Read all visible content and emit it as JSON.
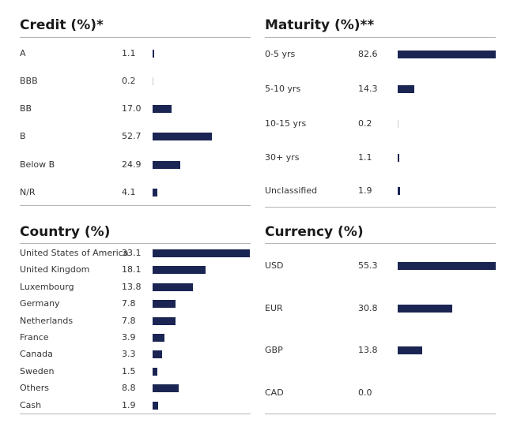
{
  "chart_data": [
    {
      "type": "bar",
      "title": "Credit (%)*",
      "categories": [
        "A",
        "BBB",
        "BB",
        "B",
        "Below B",
        "N/R"
      ],
      "values": [
        1.1,
        0.2,
        17.0,
        52.7,
        24.9,
        4.1
      ],
      "display_values": [
        "1.1",
        "0.2",
        "17.0",
        "52.7",
        "24.9",
        "4.1"
      ]
    },
    {
      "type": "bar",
      "title": "Maturity (%)**",
      "categories": [
        "0-5 yrs",
        "5-10 yrs",
        "10-15 yrs",
        "30+ yrs",
        "Unclassified"
      ],
      "values": [
        82.6,
        14.3,
        0.2,
        1.1,
        1.9
      ],
      "display_values": [
        "82.6",
        "14.3",
        "0.2",
        "1.1",
        "1.9"
      ]
    },
    {
      "type": "bar",
      "title": "Country (%)",
      "categories": [
        "United States of America",
        "United Kingdom",
        "Luxembourg",
        "Germany",
        "Netherlands",
        "France",
        "Canada",
        "Sweden",
        "Others",
        "Cash"
      ],
      "values": [
        33.1,
        18.1,
        13.8,
        7.8,
        7.8,
        3.9,
        3.3,
        1.5,
        8.8,
        1.9
      ],
      "display_values": [
        "33.1",
        "18.1",
        "13.8",
        "7.8",
        "7.8",
        "3.9",
        "3.3",
        "1.5",
        "8.8",
        "1.9"
      ]
    },
    {
      "type": "bar",
      "title": "Currency (%)",
      "categories": [
        "USD",
        "EUR",
        "GBP",
        "CAD"
      ],
      "values": [
        55.3,
        30.8,
        13.8,
        0.0
      ],
      "display_values": [
        "55.3",
        "30.8",
        "13.8",
        "0.0"
      ]
    }
  ],
  "colors": {
    "bar": "#1b2553",
    "rule": "#b5b5b5"
  }
}
